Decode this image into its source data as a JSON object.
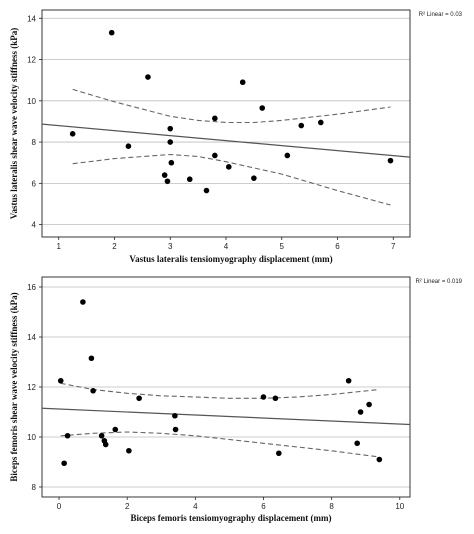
{
  "chart_data": [
    {
      "type": "scatter",
      "xlabel": "Vastus lateralis tensiomyography displacement (mm)",
      "ylabel": "Vastus lateralis shear wave velocity stiffness (kPa)",
      "r2_label": "R² Linear = 0.03",
      "xlim": [
        0.7,
        7.3
      ],
      "ylim": [
        3.4,
        14.4
      ],
      "xticks": [
        1,
        2,
        3,
        4,
        5,
        6,
        7
      ],
      "yticks": [
        4,
        6,
        8,
        10,
        12,
        14
      ],
      "grid": "horizontal",
      "points": [
        {
          "x": 1.25,
          "y": 8.4
        },
        {
          "x": 1.95,
          "y": 13.3
        },
        {
          "x": 2.25,
          "y": 7.8
        },
        {
          "x": 2.6,
          "y": 11.15
        },
        {
          "x": 2.9,
          "y": 6.4
        },
        {
          "x": 2.95,
          "y": 6.1
        },
        {
          "x": 3.0,
          "y": 8.65
        },
        {
          "x": 3.0,
          "y": 8.0
        },
        {
          "x": 3.02,
          "y": 7.0
        },
        {
          "x": 3.35,
          "y": 6.2
        },
        {
          "x": 3.65,
          "y": 5.65
        },
        {
          "x": 3.8,
          "y": 9.15
        },
        {
          "x": 3.8,
          "y": 7.35
        },
        {
          "x": 4.05,
          "y": 6.8
        },
        {
          "x": 4.3,
          "y": 10.9
        },
        {
          "x": 4.5,
          "y": 6.25
        },
        {
          "x": 4.65,
          "y": 9.65
        },
        {
          "x": 5.1,
          "y": 7.35
        },
        {
          "x": 5.35,
          "y": 8.8
        },
        {
          "x": 5.7,
          "y": 8.95
        },
        {
          "x": 6.95,
          "y": 7.1
        }
      ],
      "fit_line": [
        [
          0.7,
          8.87
        ],
        [
          7.3,
          7.27
        ]
      ],
      "ci_upper": [
        [
          1.25,
          10.55
        ],
        [
          2.0,
          9.95
        ],
        [
          3.0,
          9.25
        ],
        [
          3.5,
          9.05
        ],
        [
          4.0,
          8.95
        ],
        [
          4.5,
          8.95
        ],
        [
          5.0,
          9.05
        ],
        [
          6.0,
          9.35
        ],
        [
          6.95,
          9.7
        ]
      ],
      "ci_lower": [
        [
          1.25,
          6.95
        ],
        [
          2.0,
          7.2
        ],
        [
          3.0,
          7.4
        ],
        [
          3.5,
          7.3
        ],
        [
          4.0,
          7.05
        ],
        [
          4.5,
          6.75
        ],
        [
          5.0,
          6.45
        ],
        [
          6.0,
          5.65
        ],
        [
          6.95,
          4.95
        ]
      ]
    },
    {
      "type": "scatter",
      "xlabel": "Biceps femoris tensiomyography displacement (mm)",
      "ylabel": "Biceps femoris shear wave velocity stiffness (kPa)",
      "r2_label": "R² Linear = 0.019",
      "xlim": [
        -0.5,
        10.3
      ],
      "ylim": [
        7.6,
        16.4
      ],
      "xticks": [
        0,
        2,
        4,
        6,
        8,
        10
      ],
      "yticks": [
        8,
        10,
        12,
        14,
        16
      ],
      "grid": "horizontal",
      "points": [
        {
          "x": 0.05,
          "y": 12.25
        },
        {
          "x": 0.15,
          "y": 8.95
        },
        {
          "x": 0.25,
          "y": 10.05
        },
        {
          "x": 0.7,
          "y": 15.4
        },
        {
          "x": 0.95,
          "y": 13.15
        },
        {
          "x": 1.0,
          "y": 11.85
        },
        {
          "x": 1.25,
          "y": 10.05
        },
        {
          "x": 1.33,
          "y": 9.85
        },
        {
          "x": 1.37,
          "y": 9.7
        },
        {
          "x": 1.65,
          "y": 10.3
        },
        {
          "x": 2.05,
          "y": 9.45
        },
        {
          "x": 2.35,
          "y": 11.55
        },
        {
          "x": 3.4,
          "y": 10.85
        },
        {
          "x": 3.42,
          "y": 10.3
        },
        {
          "x": 6.0,
          "y": 11.6
        },
        {
          "x": 6.35,
          "y": 11.55
        },
        {
          "x": 6.45,
          "y": 9.35
        },
        {
          "x": 8.5,
          "y": 12.25
        },
        {
          "x": 8.75,
          "y": 9.75
        },
        {
          "x": 8.85,
          "y": 11.0
        },
        {
          "x": 9.1,
          "y": 11.3
        },
        {
          "x": 9.4,
          "y": 9.1
        }
      ],
      "fit_line": [
        [
          -0.5,
          11.15
        ],
        [
          10.3,
          10.5
        ]
      ],
      "ci_upper": [
        [
          0.05,
          12.15
        ],
        [
          1.0,
          11.9
        ],
        [
          2.0,
          11.75
        ],
        [
          3.0,
          11.65
        ],
        [
          4.0,
          11.6
        ],
        [
          5.0,
          11.55
        ],
        [
          6.0,
          11.55
        ],
        [
          7.0,
          11.6
        ],
        [
          8.0,
          11.7
        ],
        [
          9.4,
          11.9
        ]
      ],
      "ci_lower": [
        [
          0.05,
          10.05
        ],
        [
          1.0,
          10.15
        ],
        [
          2.0,
          10.2
        ],
        [
          3.0,
          10.15
        ],
        [
          4.0,
          10.05
        ],
        [
          5.0,
          9.9
        ],
        [
          6.0,
          9.75
        ],
        [
          7.0,
          9.6
        ],
        [
          8.0,
          9.45
        ],
        [
          9.4,
          9.2
        ]
      ]
    }
  ]
}
